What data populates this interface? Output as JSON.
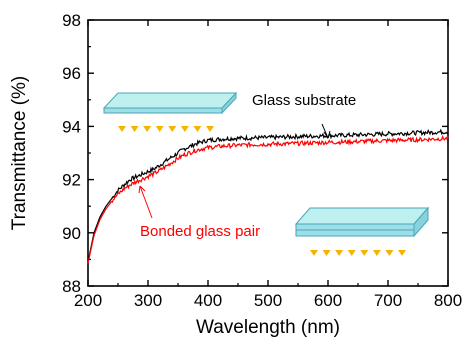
{
  "chart_data": {
    "type": "line",
    "title": "",
    "xlabel": "Wavelength (nm)",
    "ylabel": "Transmittance (%)",
    "xlim": [
      200,
      800
    ],
    "ylim": [
      88,
      98
    ],
    "x_ticks": [
      "200",
      "300",
      "400",
      "500",
      "600",
      "700",
      "800"
    ],
    "y_ticks": [
      "88",
      "90",
      "92",
      "94",
      "96",
      "98"
    ],
    "grid": false,
    "legend": "none",
    "x": [
      200,
      210,
      220,
      230,
      240,
      250,
      260,
      270,
      280,
      290,
      300,
      310,
      320,
      330,
      340,
      350,
      360,
      370,
      380,
      390,
      400,
      420,
      440,
      460,
      480,
      500,
      550,
      600,
      650,
      700,
      750,
      800
    ],
    "series": [
      {
        "name": "Glass substrate",
        "color": "#000000",
        "values": [
          88.9,
          90.0,
          90.6,
          91.0,
          91.3,
          91.6,
          91.8,
          92.0,
          92.1,
          92.2,
          92.3,
          92.4,
          92.55,
          92.7,
          92.85,
          93.0,
          93.15,
          93.25,
          93.35,
          93.42,
          93.48,
          93.52,
          93.55,
          93.56,
          93.57,
          93.58,
          93.62,
          93.65,
          93.68,
          93.72,
          93.76,
          93.8
        ]
      },
      {
        "name": "Bonded glass pair",
        "color": "#ff0000",
        "values": [
          88.85,
          89.9,
          90.5,
          90.9,
          91.2,
          91.45,
          91.65,
          91.8,
          91.92,
          92.02,
          92.12,
          92.22,
          92.35,
          92.5,
          92.65,
          92.8,
          92.93,
          93.02,
          93.1,
          93.16,
          93.2,
          93.25,
          93.28,
          93.3,
          93.32,
          93.33,
          93.36,
          93.4,
          93.43,
          93.47,
          93.5,
          93.55
        ]
      }
    ],
    "annotations": {
      "glass_substrate": "Glass substrate",
      "bonded_pair": "Bonded glass pair"
    }
  }
}
